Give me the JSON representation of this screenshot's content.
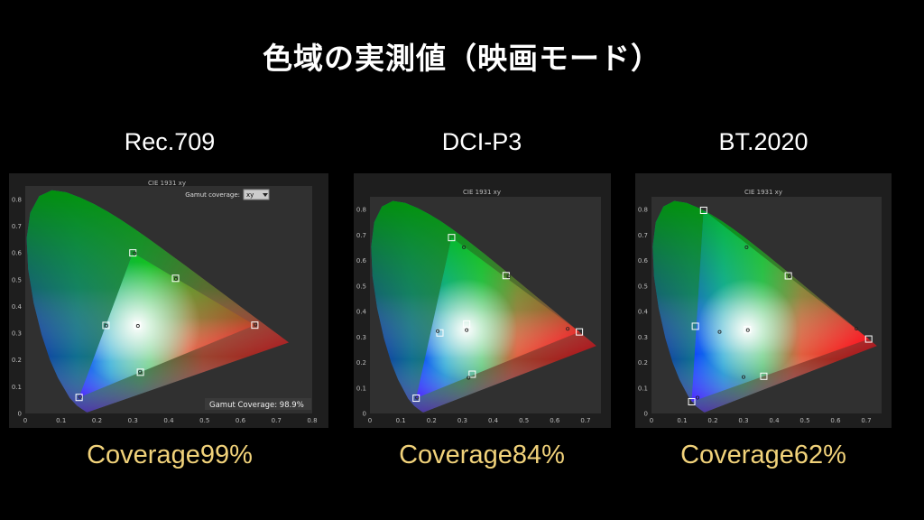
{
  "page": {
    "title": "色域の実測値（映画モード）"
  },
  "chart_data": [
    {
      "type": "scatter",
      "gamut_name": "Rec.709",
      "coverage_text": "Coverage99%",
      "chart_title": "CIE 1931 xy",
      "dropdown": {
        "label": "Gamut coverage:",
        "value": "xy"
      },
      "footer": {
        "label": "Gamut Coverage:",
        "value": "98.9%"
      },
      "xlim": [
        0,
        0.8
      ],
      "ylim": [
        0,
        0.85
      ],
      "x_ticks": [
        "0",
        "0.1",
        "0.2",
        "0.3",
        "0.4",
        "0.5",
        "0.6",
        "0.7",
        "0.8"
      ],
      "y_ticks": [
        "0",
        "0.1",
        "0.2",
        "0.3",
        "0.4",
        "0.5",
        "0.6",
        "0.7",
        "0.8"
      ],
      "target_triangle": [
        [
          0.64,
          0.33
        ],
        [
          0.3,
          0.6
        ],
        [
          0.15,
          0.06
        ]
      ],
      "targets": [
        [
          0.64,
          0.33
        ],
        [
          0.3,
          0.6
        ],
        [
          0.15,
          0.06
        ],
        [
          0.3127,
          0.329
        ],
        [
          0.225,
          0.329
        ],
        [
          0.321,
          0.154
        ],
        [
          0.419,
          0.505
        ]
      ],
      "measured": [
        [
          0.642,
          0.332
        ],
        [
          0.305,
          0.598
        ],
        [
          0.153,
          0.062
        ],
        [
          0.314,
          0.327
        ],
        [
          0.226,
          0.328
        ],
        [
          0.32,
          0.156
        ],
        [
          0.42,
          0.503
        ]
      ]
    },
    {
      "type": "scatter",
      "gamut_name": "DCI-P3",
      "coverage_text": "Coverage84%",
      "chart_title": "CIE 1931 xy",
      "xlim": [
        0,
        0.75
      ],
      "ylim": [
        0,
        0.85
      ],
      "x_ticks": [
        "0",
        "0.1",
        "0.2",
        "0.3",
        "0.4",
        "0.5",
        "0.6",
        "0.7"
      ],
      "y_ticks": [
        "0",
        "0.1",
        "0.2",
        "0.3",
        "0.4",
        "0.5",
        "0.6",
        "0.7",
        "0.8"
      ],
      "target_triangle": [
        [
          0.68,
          0.32
        ],
        [
          0.265,
          0.69
        ],
        [
          0.15,
          0.06
        ]
      ],
      "targets": [
        [
          0.68,
          0.32
        ],
        [
          0.265,
          0.69
        ],
        [
          0.15,
          0.06
        ],
        [
          0.314,
          0.351
        ],
        [
          0.227,
          0.316
        ],
        [
          0.332,
          0.154
        ],
        [
          0.442,
          0.541
        ]
      ],
      "measured": [
        [
          0.642,
          0.332
        ],
        [
          0.305,
          0.652
        ],
        [
          0.153,
          0.062
        ],
        [
          0.314,
          0.327
        ],
        [
          0.22,
          0.323
        ],
        [
          0.32,
          0.14
        ],
        [
          0.45,
          0.538
        ]
      ]
    },
    {
      "type": "scatter",
      "gamut_name": "BT.2020",
      "coverage_text": "Coverage62%",
      "chart_title": "CIE 1931 xy",
      "xlim": [
        0,
        0.75
      ],
      "ylim": [
        0,
        0.85
      ],
      "x_ticks": [
        "0",
        "0.1",
        "0.2",
        "0.3",
        "0.4",
        "0.5",
        "0.6",
        "0.7"
      ],
      "y_ticks": [
        "0",
        "0.1",
        "0.2",
        "0.3",
        "0.4",
        "0.5",
        "0.6",
        "0.7",
        "0.8"
      ],
      "target_triangle": [
        [
          0.708,
          0.292
        ],
        [
          0.17,
          0.797
        ],
        [
          0.131,
          0.046
        ]
      ],
      "targets": [
        [
          0.708,
          0.292
        ],
        [
          0.17,
          0.797
        ],
        [
          0.131,
          0.046
        ],
        [
          0.3127,
          0.329
        ],
        [
          0.143,
          0.342
        ],
        [
          0.366,
          0.146
        ],
        [
          0.446,
          0.54
        ]
      ],
      "measured": [
        [
          0.668,
          0.333
        ],
        [
          0.31,
          0.652
        ],
        [
          0.15,
          0.062
        ],
        [
          0.314,
          0.327
        ],
        [
          0.222,
          0.32
        ],
        [
          0.3,
          0.143
        ],
        [
          0.45,
          0.538
        ]
      ]
    }
  ]
}
